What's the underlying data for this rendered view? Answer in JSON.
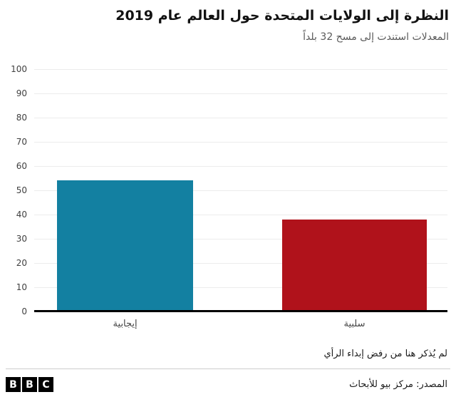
{
  "header": {
    "title": "النظرة إلى الولايات المتحدة حول العالم عام 2019",
    "subtitle": "المعدلات استندت إلى مسح 32 بلداً"
  },
  "chart_data": {
    "type": "bar",
    "title": "النظرة إلى الولايات المتحدة حول العالم عام 2019",
    "subtitle": "المعدلات استندت إلى مسح 32 بلداً",
    "categories": [
      "إيجابية",
      "سلبية"
    ],
    "values": [
      54,
      38
    ],
    "bar_colors": [
      "#1380A1",
      "#B0121B"
    ],
    "ylim": [
      0,
      100
    ],
    "yticks": [
      100,
      90,
      80,
      70,
      60,
      50,
      40,
      30,
      20,
      10,
      0
    ],
    "grid": true,
    "legend": "none",
    "xlabel": "",
    "ylabel": ""
  },
  "footer": {
    "note": "لم يُذكر هنا من رفض إبداء الرأي",
    "source": "المصدر: مركز بيو للأبحاث",
    "logo_letters": [
      "B",
      "B",
      "C"
    ]
  }
}
